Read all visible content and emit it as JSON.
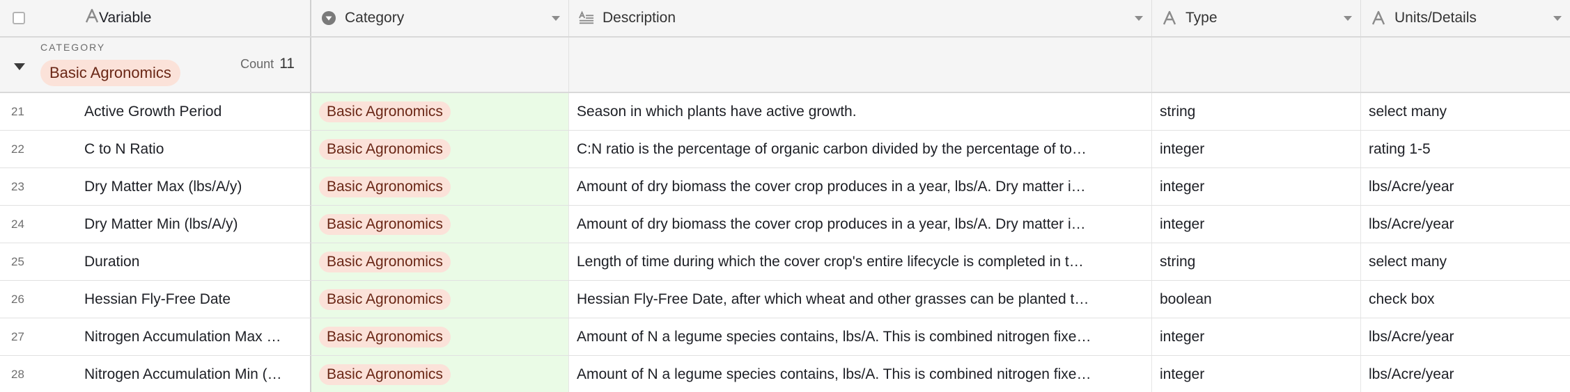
{
  "header": {
    "columns": [
      {
        "label": "Variable",
        "icon": "text-field-icon"
      },
      {
        "label": "Category",
        "icon": "single-select-icon"
      },
      {
        "label": "Description",
        "icon": "long-text-icon"
      },
      {
        "label": "Type",
        "icon": "text-field-icon"
      },
      {
        "label": "Units/Details",
        "icon": "text-field-icon"
      }
    ]
  },
  "group": {
    "caption": "CATEGORY",
    "value": "Basic Agronomics",
    "count_label": "Count",
    "count_value": "11"
  },
  "rows": [
    {
      "num": "21",
      "variable": "Active Growth Period",
      "category": "Basic Agronomics",
      "description": "Season in which plants have active growth.",
      "type": "string",
      "units": "select many"
    },
    {
      "num": "22",
      "variable": "C to N Ratio",
      "category": "Basic Agronomics",
      "description": "C:N ratio is the percentage of organic carbon divided by the percentage of to…",
      "type": "integer",
      "units": "rating 1-5"
    },
    {
      "num": "23",
      "variable": "Dry Matter Max (lbs/A/y)",
      "category": "Basic Agronomics",
      "description": "Amount of dry biomass the cover crop produces in a year, lbs/A. Dry matter i…",
      "type": "integer",
      "units": "lbs/Acre/year"
    },
    {
      "num": "24",
      "variable": "Dry Matter Min (lbs/A/y)",
      "category": "Basic Agronomics",
      "description": "Amount of dry biomass the cover crop produces in a year, lbs/A. Dry matter i…",
      "type": "integer",
      "units": "lbs/Acre/year"
    },
    {
      "num": "25",
      "variable": "Duration",
      "category": "Basic Agronomics",
      "description": "Length of time during which the cover crop's entire lifecycle is completed in t…",
      "type": "string",
      "units": "select many"
    },
    {
      "num": "26",
      "variable": "Hessian Fly-Free Date",
      "category": "Basic Agronomics",
      "description": "Hessian Fly-Free Date, after which wheat and other grasses can be planted t…",
      "type": "boolean",
      "units": "check box"
    },
    {
      "num": "27",
      "variable": "Nitrogen Accumulation Max …",
      "category": "Basic Agronomics",
      "description": "Amount of N a legume species contains, lbs/A. This is combined nitrogen fixe…",
      "type": "integer",
      "units": "lbs/Acre/year"
    },
    {
      "num": "28",
      "variable": "Nitrogen Accumulation Min (…",
      "category": "Basic Agronomics",
      "description": "Amount of N a legume species contains, lbs/A. This is combined nitrogen fixe…",
      "type": "integer",
      "units": "lbs/Acre/year"
    }
  ]
}
